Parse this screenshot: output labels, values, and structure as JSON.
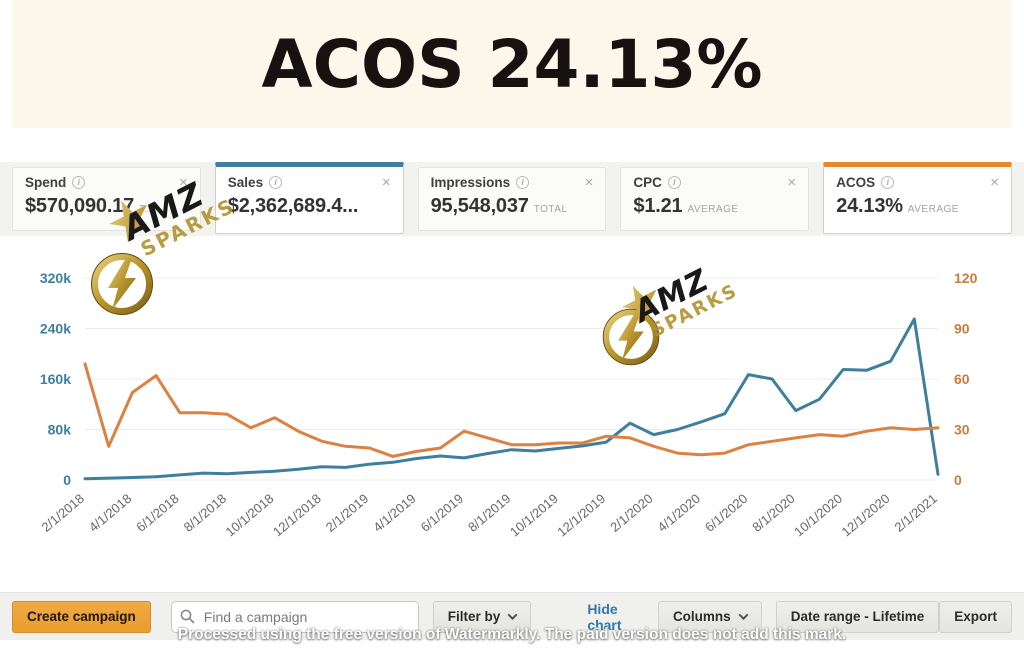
{
  "banner": {
    "title": "ACOS 24.13%"
  },
  "cards": [
    {
      "label": "Spend",
      "value": "$570,090.17",
      "suffix": "T...",
      "selected": false,
      "accent": ""
    },
    {
      "label": "Sales",
      "value": "$2,362,689.4...",
      "suffix": "",
      "selected": true,
      "accent": "#3e7f9d"
    },
    {
      "label": "Impressions",
      "value": "95,548,037",
      "suffix": "TOTAL",
      "selected": false,
      "accent": ""
    },
    {
      "label": "CPC",
      "value": "$1.21",
      "suffix": "AVERAGE",
      "selected": false,
      "accent": ""
    },
    {
      "label": "ACOS",
      "value": "24.13%",
      "suffix": "AVERAGE",
      "selected": true,
      "accent": "#e8882c"
    }
  ],
  "chart_data": {
    "type": "line",
    "x": [
      "2/1/2018",
      "3/1/2018",
      "4/1/2018",
      "5/1/2018",
      "6/1/2018",
      "7/1/2018",
      "8/1/2018",
      "9/1/2018",
      "10/1/2018",
      "11/1/2018",
      "12/1/2018",
      "1/1/2019",
      "2/1/2019",
      "3/1/2019",
      "4/1/2019",
      "5/1/2019",
      "6/1/2019",
      "7/1/2019",
      "8/1/2019",
      "9/1/2019",
      "10/1/2019",
      "11/1/2019",
      "12/1/2019",
      "1/1/2020",
      "2/1/2020",
      "3/1/2020",
      "4/1/2020",
      "5/1/2020",
      "6/1/2020",
      "7/1/2020",
      "8/1/2020",
      "9/1/2020",
      "10/1/2020",
      "11/1/2020",
      "12/1/2020",
      "1/1/2021",
      "2/1/2021"
    ],
    "tick_every": 2,
    "series": [
      {
        "name": "Sales",
        "axis": "left",
        "color": "#3e7f9d",
        "values": [
          2000,
          3000,
          4000,
          5000,
          8000,
          11000,
          10000,
          12000,
          14000,
          17000,
          21000,
          20000,
          25000,
          28000,
          34000,
          38000,
          35000,
          42000,
          48000,
          46000,
          50000,
          54000,
          60000,
          90000,
          72000,
          80000,
          92000,
          105000,
          167000,
          160000,
          110000,
          128000,
          175000,
          174000,
          188000,
          255000,
          9000
        ]
      },
      {
        "name": "ACOS",
        "axis": "right",
        "color": "#dd8143",
        "values": [
          69,
          20,
          52,
          62,
          40,
          40,
          39,
          31,
          37,
          29,
          23,
          20,
          19,
          14,
          17,
          19,
          29,
          25,
          21,
          21,
          22,
          22,
          26,
          25,
          20,
          16,
          15,
          16,
          21,
          23,
          25,
          27,
          26,
          29,
          31,
          30,
          31
        ]
      }
    ],
    "left_axis": {
      "min": 0,
      "max": 320000,
      "ticks": [
        "0",
        "80k",
        "160k",
        "240k",
        "320k"
      ],
      "color": "#3e7f9d"
    },
    "right_axis": {
      "min": 0,
      "max": 120,
      "ticks": [
        "0",
        "30",
        "60",
        "90",
        "120"
      ],
      "color": "#c87d3c"
    },
    "grid": true,
    "legend": "none",
    "x_tick_color": "#666666",
    "x_tick_rotation": -40
  },
  "toolbar": {
    "create_campaign": "Create campaign",
    "search_placeholder": "Find a campaign",
    "filter_by": "Filter by",
    "hide_chart": "Hide chart",
    "columns": "Columns",
    "date_range": "Date range - Lifetime",
    "export": "Export"
  },
  "watermarks": {
    "logo_line1": "AMZ",
    "logo_line2": "SPARKS",
    "bottom_text": "Processed using the free version of Watermarkly. The paid version does not add this mark."
  },
  "colors": {
    "banner_bg": "#fbf7ea",
    "sales_accent": "#3e7f9d",
    "acos_accent": "#e8882c",
    "link_blue": "#3079ab",
    "primary_button": "#eca33c"
  }
}
